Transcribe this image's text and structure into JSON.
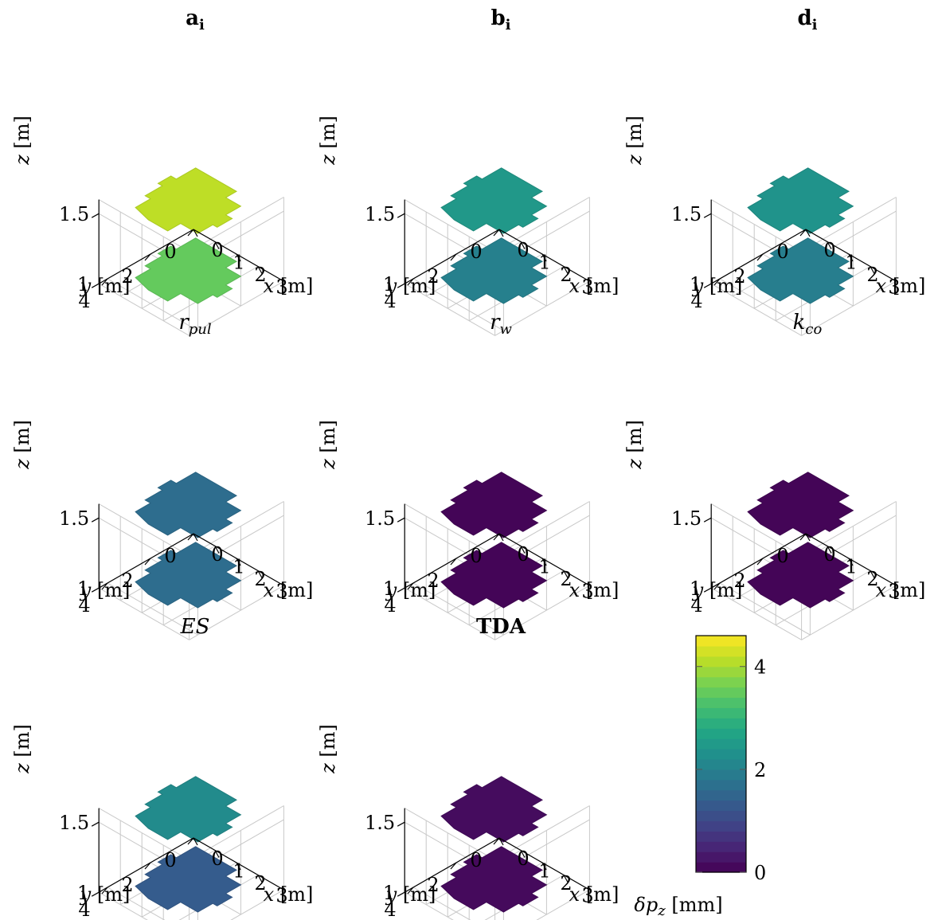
{
  "chart_data": {
    "type": "surface-3d-grid",
    "colorscale": "viridis",
    "colorbar": {
      "label_symbol": "δp",
      "label_sub": "z",
      "label_unit": " [mm]",
      "ticks": [
        "0",
        "2",
        "4"
      ],
      "tick_values": [
        0,
        2,
        4
      ],
      "range": [
        0,
        4.6
      ],
      "levels": 23
    },
    "axes": {
      "x": {
        "symbol": "x",
        "unit": " [m]",
        "ticks": [
          "0",
          "1",
          "2",
          "3"
        ],
        "tick_values": [
          0,
          1,
          2,
          3
        ]
      },
      "y": {
        "symbol": "y",
        "unit": " [m]",
        "ticks": [
          "0",
          "2",
          "4"
        ],
        "tick_values": [
          0,
          2,
          4
        ]
      },
      "z": {
        "symbol": "z",
        "unit": " [m]",
        "ticks": [
          "1",
          "1.5"
        ],
        "tick_values": [
          1,
          1.5
        ]
      }
    },
    "panels": [
      {
        "id": "ai",
        "title": "a",
        "title_sub": "i",
        "title_style": "bold",
        "upper_value": 4.15,
        "lower_value": 3.5
      },
      {
        "id": "bi",
        "title": "b",
        "title_sub": "i",
        "title_style": "bold",
        "upper_value": 2.45,
        "lower_value": 2.0
      },
      {
        "id": "di",
        "title": "d",
        "title_sub": "i",
        "title_style": "bold",
        "upper_value": 2.35,
        "lower_value": 1.95
      },
      {
        "id": "rpul",
        "title": "r",
        "title_sub": "pul",
        "title_style": "italic",
        "upper_value": 1.65,
        "lower_value": 1.65
      },
      {
        "id": "rw",
        "title": "r",
        "title_sub": "w",
        "title_style": "italic",
        "upper_value": 0.05,
        "lower_value": 0.05
      },
      {
        "id": "kco",
        "title": "k",
        "title_sub": "co",
        "title_style": "italic",
        "upper_value": 0.05,
        "lower_value": 0.05
      },
      {
        "id": "es",
        "title": "ES",
        "title_sub": "",
        "title_style": "italic",
        "upper_value": 2.2,
        "lower_value": 1.35
      },
      {
        "id": "tda",
        "title": "TDA",
        "title_sub": "",
        "title_style": "bold",
        "upper_value": 0.15,
        "lower_value": 0.12
      }
    ]
  }
}
